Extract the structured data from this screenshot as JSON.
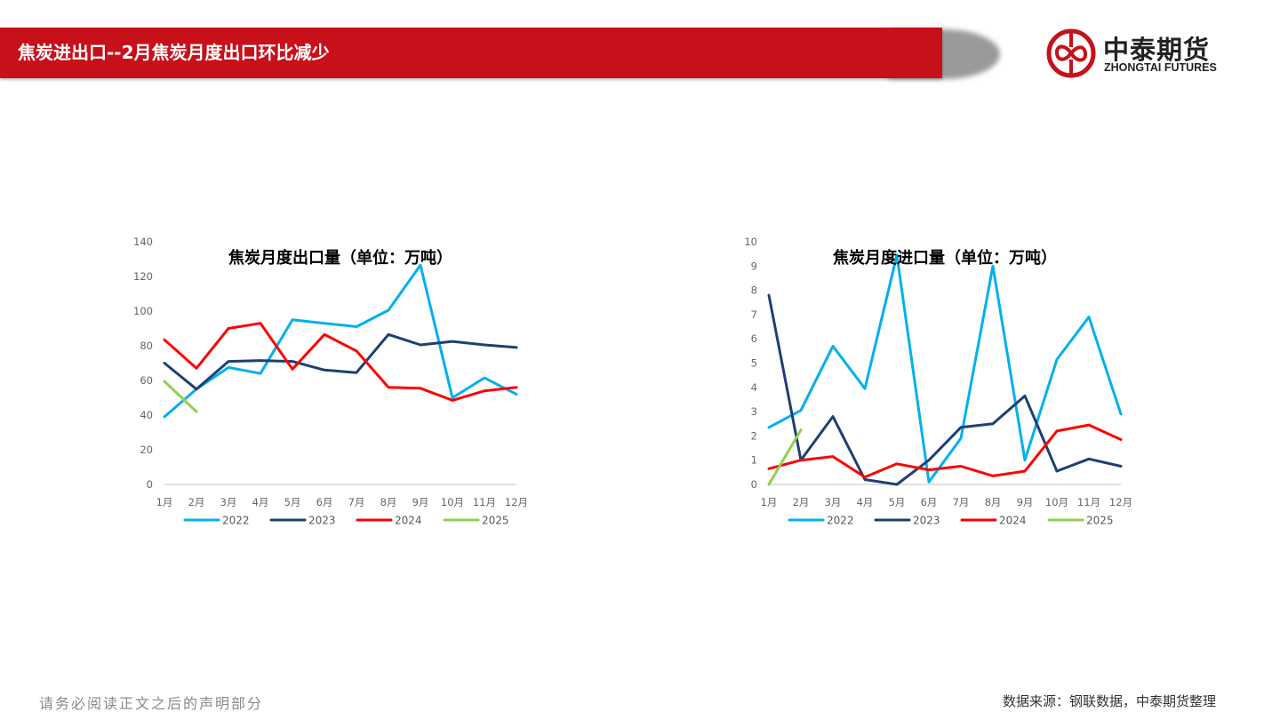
{
  "header": {
    "title": "焦炭进出口--2月焦炭月度出口环比减少",
    "bar_color": "#c8101a"
  },
  "logo": {
    "name_cn": "中泰期货",
    "name_en": "ZHONGTAI FUTURES",
    "color": "#c8101a"
  },
  "footer": {
    "disclaimer": "请务必阅读正文之后的声明部分",
    "source": "数据来源：钢联数据，中泰期货整理"
  },
  "colors": {
    "2022": "#00b0f0",
    "2023": "#1f3f73",
    "2024": "#ff0000",
    "2025": "#92d050"
  },
  "chart_data": [
    {
      "type": "line",
      "title": "焦炭月度出口量（单位：万吨）",
      "xlabel": "",
      "ylabel": "",
      "ylim": [
        0,
        140
      ],
      "yticks": [
        0,
        20,
        40,
        60,
        80,
        100,
        120,
        140
      ],
      "grid": false,
      "legend_position": "bottom",
      "categories": [
        "1月",
        "2月",
        "3月",
        "4月",
        "5月",
        "6月",
        "7月",
        "8月",
        "9月",
        "10月",
        "11月",
        "12月"
      ],
      "series": [
        {
          "name": "2022",
          "color": "#00b0f0",
          "values": [
            39,
            55,
            67.5,
            64,
            95,
            93,
            91,
            100.5,
            126.5,
            50,
            61.5,
            52
          ]
        },
        {
          "name": "2023",
          "color": "#1f3f73",
          "values": [
            70,
            55,
            71,
            71.5,
            71,
            66,
            64.5,
            86.5,
            80.5,
            82.5,
            80.5,
            79
          ]
        },
        {
          "name": "2024",
          "color": "#ff0000",
          "values": [
            83.5,
            67,
            90,
            93,
            66.5,
            86.5,
            77,
            56,
            55.5,
            48.5,
            54,
            56
          ]
        },
        {
          "name": "2025",
          "color": "#92d050",
          "values": [
            59.5,
            42
          ]
        }
      ]
    },
    {
      "type": "line",
      "title": "焦炭月度进口量（单位：万吨）",
      "xlabel": "",
      "ylabel": "",
      "ylim": [
        0,
        10
      ],
      "yticks": [
        0,
        1,
        2,
        3,
        4,
        5,
        6,
        7,
        8,
        9,
        10
      ],
      "grid": false,
      "legend_position": "bottom",
      "categories": [
        "1月",
        "2月",
        "3月",
        "4月",
        "5月",
        "6月",
        "7月",
        "8月",
        "9月",
        "10月",
        "11月",
        "12月"
      ],
      "series": [
        {
          "name": "2022",
          "color": "#00b0f0",
          "values": [
            2.35,
            3.05,
            5.7,
            3.95,
            9.45,
            0.1,
            1.9,
            9.0,
            1.0,
            5.15,
            6.9,
            2.9
          ]
        },
        {
          "name": "2023",
          "color": "#1f3f73",
          "values": [
            7.8,
            1.0,
            2.8,
            0.2,
            0.0,
            1.0,
            2.35,
            2.5,
            3.65,
            0.55,
            1.05,
            0.75
          ]
        },
        {
          "name": "2024",
          "color": "#ff0000",
          "values": [
            0.65,
            1.0,
            1.15,
            0.3,
            0.85,
            0.6,
            0.75,
            0.35,
            0.55,
            2.2,
            2.45,
            1.85
          ]
        },
        {
          "name": "2025",
          "color": "#92d050",
          "values": [
            0.0,
            2.25
          ]
        }
      ]
    }
  ]
}
